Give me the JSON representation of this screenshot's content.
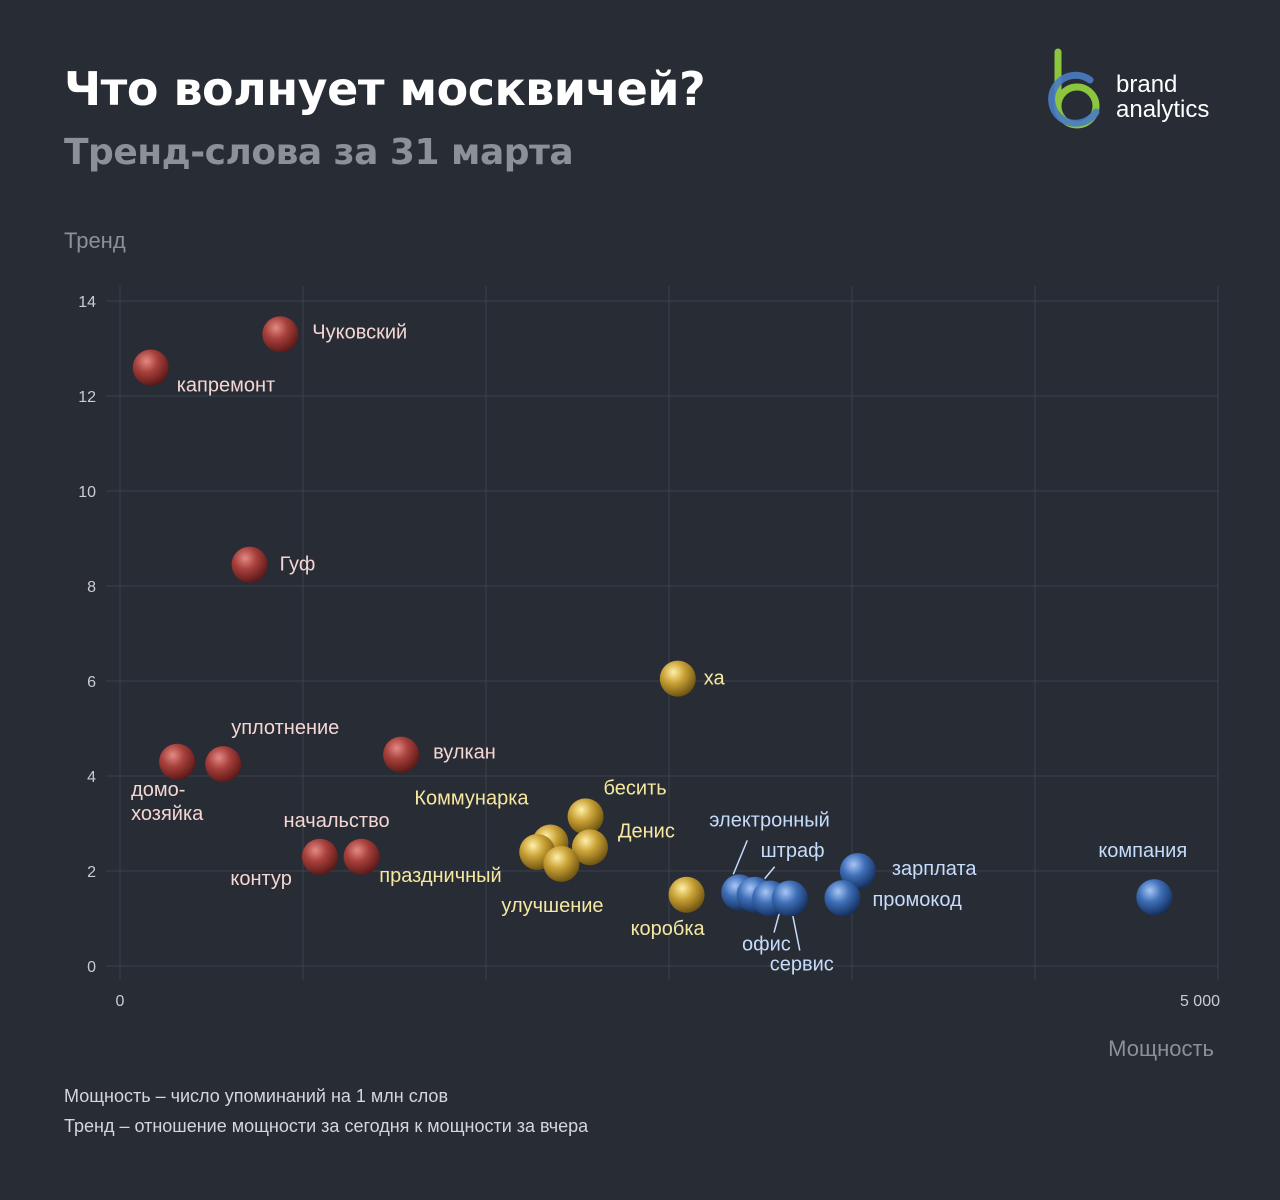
{
  "header": {
    "title": "Что волнует москвичей?",
    "subtitle": "Тренд-слова за 31 марта"
  },
  "logo": {
    "line1": "brand",
    "line2": "analytics"
  },
  "colors": {
    "background": "#282c35",
    "red": "#a7403c",
    "yellow": "#c9a135",
    "blue": "#3f6fb8",
    "label_red": "#f4d6d3",
    "label_yellow": "#f6e8a0",
    "label_blue": "#c5dcfb",
    "logo_green": "#8cc63f",
    "logo_blue": "#4a7cc3"
  },
  "notes": [
    "Мощность – число упоминаний на 1 млн слов",
    "Тренд – отношение мощности за сегодня к мощности за вчера"
  ],
  "chart_data": {
    "type": "scatter",
    "title": "Что волнует москвичей?",
    "subtitle": "Тренд-слова за 31 марта",
    "xlabel": "Мощность",
    "ylabel": "Тренд",
    "xlim": [
      0,
      5000
    ],
    "ylim": [
      0,
      14
    ],
    "x_ticks": [
      0,
      5000
    ],
    "x_tick_labels": [
      "0",
      "5 000"
    ],
    "y_ticks": [
      0,
      2,
      4,
      6,
      8,
      10,
      12,
      14
    ],
    "y_tick_labels": [
      "0",
      "2",
      "4",
      "6",
      "8",
      "10",
      "12",
      "14"
    ],
    "grid": true,
    "series": [
      {
        "group": "red",
        "points": [
          {
            "label": "Чуковский",
            "x": 730,
            "y": 13.3
          },
          {
            "label": "капремонт",
            "x": 140,
            "y": 12.6
          },
          {
            "label": "Гуф",
            "x": 590,
            "y": 8.45
          },
          {
            "label": "вулкан",
            "x": 1280,
            "y": 4.45
          },
          {
            "label": "уплотнение",
            "x": 470,
            "y": 4.25
          },
          {
            "label": "домо-\nхозяйка",
            "x": 260,
            "y": 4.3
          },
          {
            "label": "начальство",
            "x": 1100,
            "y": 2.3
          },
          {
            "label": "контур",
            "x": 910,
            "y": 2.3
          }
        ]
      },
      {
        "group": "yellow",
        "points": [
          {
            "label": "ха",
            "x": 2540,
            "y": 6.05
          },
          {
            "label": "бесить",
            "x": 2120,
            "y": 3.15
          },
          {
            "label": "Коммунарка",
            "x": 1960,
            "y": 2.6
          },
          {
            "label": "Денис",
            "x": 2140,
            "y": 2.5
          },
          {
            "label": "праздничный",
            "x": 1900,
            "y": 2.4
          },
          {
            "label": "улучшение",
            "x": 2010,
            "y": 2.15
          },
          {
            "label": "коробка",
            "x": 2580,
            "y": 1.5
          }
        ]
      },
      {
        "group": "blue",
        "points": [
          {
            "label": "электронный",
            "x": 2820,
            "y": 1.55
          },
          {
            "label": "штраф",
            "x": 2890,
            "y": 1.5
          },
          {
            "label": "офис",
            "x": 2960,
            "y": 1.42
          },
          {
            "label": "сервис",
            "x": 3050,
            "y": 1.42
          },
          {
            "label": "зарплата",
            "x": 3360,
            "y": 2.0
          },
          {
            "label": "промокод",
            "x": 3290,
            "y": 1.43
          },
          {
            "label": "компания",
            "x": 4710,
            "y": 1.45
          }
        ]
      }
    ]
  }
}
